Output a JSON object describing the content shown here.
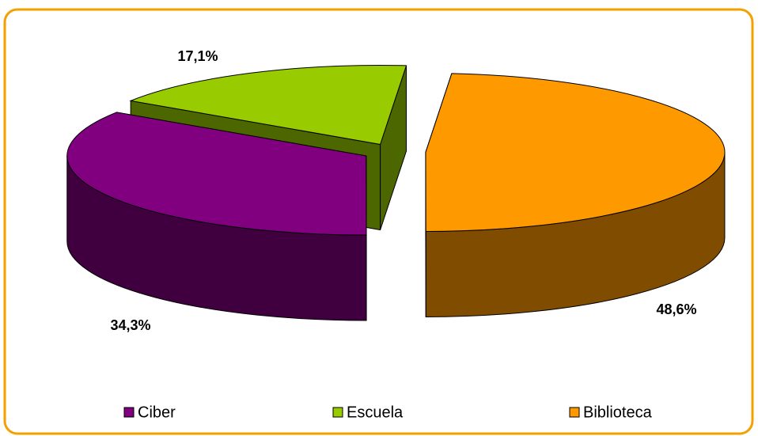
{
  "chart_data": {
    "type": "pie3d",
    "categories": [
      "Ciber",
      "Escuela",
      "Biblioteca"
    ],
    "values": [
      34.3,
      17.1,
      48.6
    ],
    "value_labels": [
      "34,3%",
      "17,1%",
      "48,6%"
    ],
    "colors": [
      "#800080",
      "#99cc00",
      "#ff9900"
    ],
    "legend": "bottom"
  }
}
